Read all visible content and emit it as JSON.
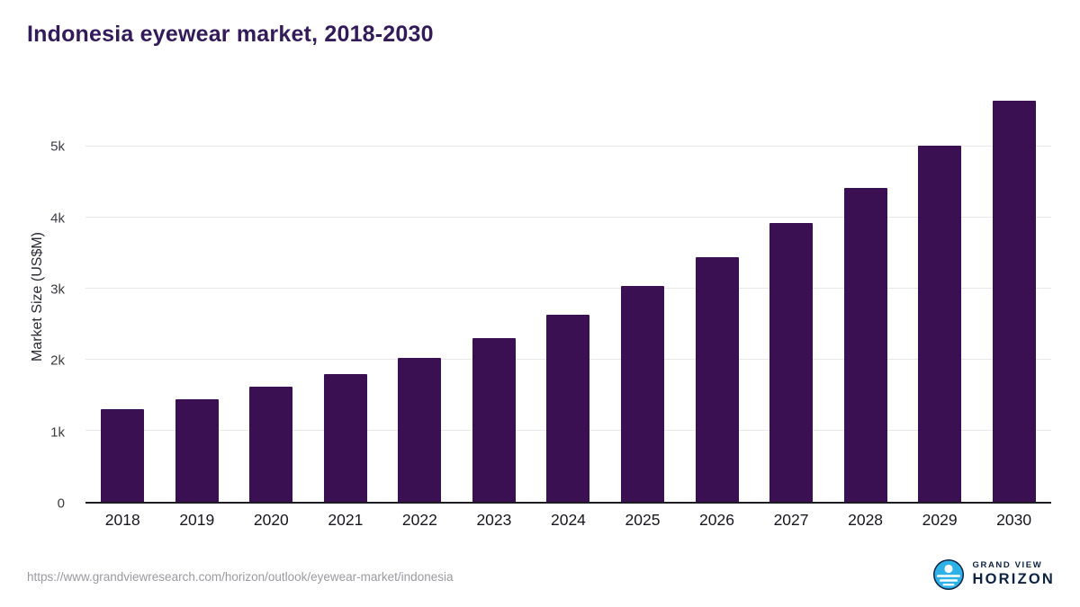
{
  "title": "Indonesia eyewear market, 2018-2030",
  "footer": {
    "source_url": "https://www.grandviewresearch.com/horizon/outlook/eyewear-market/indonesia",
    "brand_line1": "GRAND VIEW",
    "brand_line2": "HORIZON"
  },
  "colors": {
    "bar": "#3b1053",
    "title": "#331a59",
    "gridline": "#e8e8ec",
    "axis": "#1c1c22",
    "tick_label": "#3a3a42",
    "source_text": "#9a9aa0",
    "logo_blue": "#2eb1e6",
    "logo_navy": "#0e2342"
  },
  "chart_data": {
    "type": "bar",
    "title": "Indonesia eyewear market, 2018-2030",
    "categories": [
      "2018",
      "2019",
      "2020",
      "2021",
      "2022",
      "2023",
      "2024",
      "2025",
      "2026",
      "2027",
      "2028",
      "2029",
      "2030"
    ],
    "values": [
      1300,
      1450,
      1620,
      1800,
      2030,
      2300,
      2640,
      3040,
      3450,
      3920,
      4420,
      5010,
      5650
    ],
    "xlabel": "",
    "ylabel": "Market Size (US$M)",
    "ylim": [
      0,
      5800
    ],
    "yticks": [
      {
        "value": 0,
        "label": "0"
      },
      {
        "value": 1000,
        "label": "1k"
      },
      {
        "value": 2000,
        "label": "2k"
      },
      {
        "value": 3000,
        "label": "3k"
      },
      {
        "value": 4000,
        "label": "4k"
      },
      {
        "value": 5000,
        "label": "5k"
      }
    ],
    "grid": true,
    "legend": false
  }
}
